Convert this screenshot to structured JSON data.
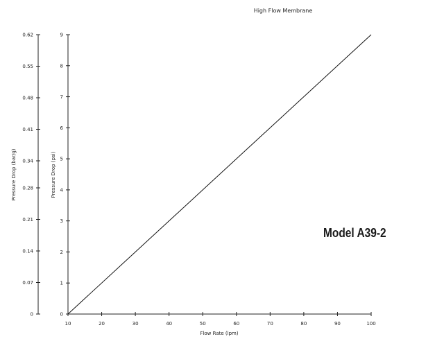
{
  "model_label": "Model A39-2",
  "chart_data": {
    "type": "line",
    "title": "High Flow Membrane",
    "xlabel": "Flow Rate (lpm)",
    "ylabel_left": "Pressure Drop (bar/g)",
    "ylabel_right": "Pressure Drop (psi)",
    "x_ticks": [
      "10",
      "20",
      "30",
      "40",
      "50",
      "60",
      "70",
      "80",
      "90",
      "100"
    ],
    "xlim": [
      10,
      100
    ],
    "y_left_ticks": [
      "0",
      "0.07",
      "0.14",
      "0.21",
      "0.28",
      "0.34",
      "0.41",
      "0.48",
      "0.55",
      "0.62"
    ],
    "y_left_lim": [
      0,
      0.62
    ],
    "y_right_ticks": [
      "0",
      "1",
      "2",
      "3",
      "4",
      "5",
      "6",
      "7",
      "8",
      "9"
    ],
    "y_right_lim": [
      0,
      9
    ],
    "series": [
      {
        "x": [
          10,
          100
        ],
        "y": [
          0,
          9
        ],
        "color": "#111111"
      }
    ],
    "grid": false
  }
}
